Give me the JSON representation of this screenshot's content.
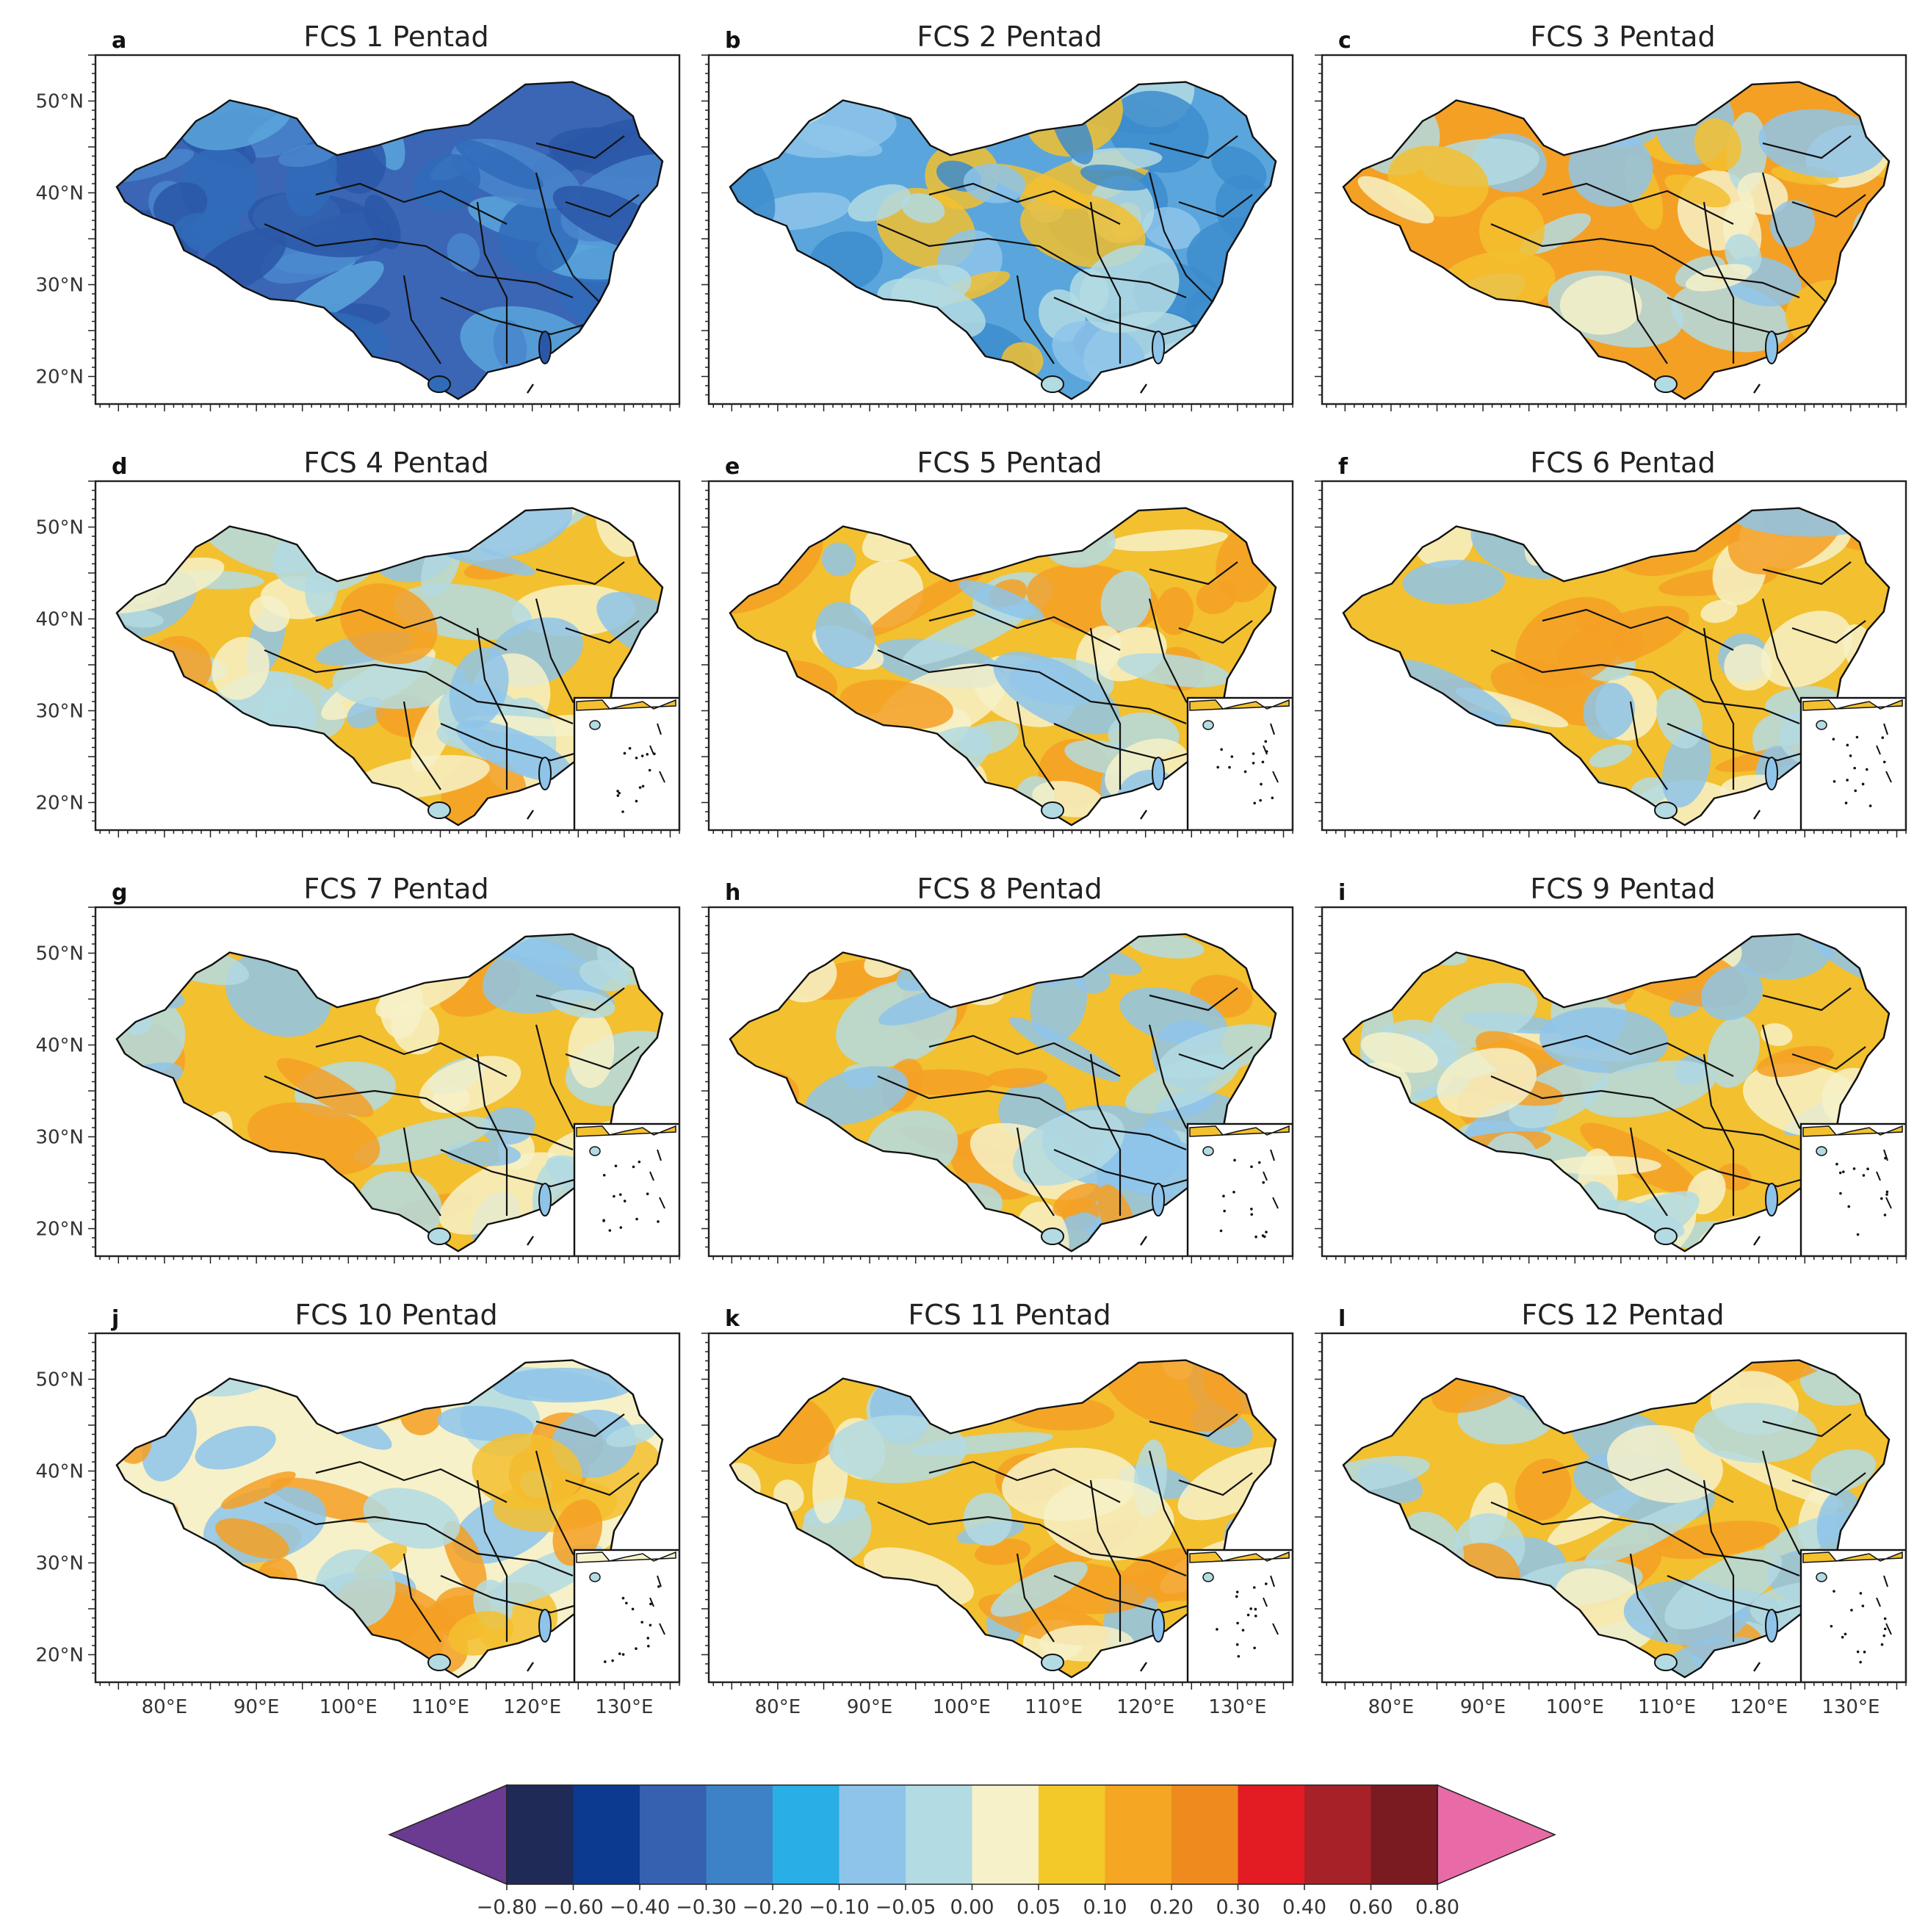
{
  "panels": [
    {
      "letter": "a",
      "title": "FCS 1 Pentad",
      "palette": [
        "#3a66b5",
        "#2b57a8",
        "#4a86cc",
        "#2f6bb8",
        "#5aa6dc"
      ],
      "inset": false
    },
    {
      "letter": "b",
      "title": "FCS 2 Pentad",
      "palette": [
        "#5aa6dc",
        "#8ec4ea",
        "#f3c02f",
        "#b3dbe3",
        "#3d8ccc"
      ],
      "inset": false
    },
    {
      "letter": "c",
      "title": "FCS 3 Pentad",
      "palette": [
        "#f4a025",
        "#8ec4ea",
        "#f6f1c8",
        "#b3dbe3",
        "#f3c02f"
      ],
      "inset": false
    },
    {
      "letter": "d",
      "title": "FCS 4 Pentad",
      "palette": [
        "#f3c02f",
        "#8ec4ea",
        "#f6f1c8",
        "#b3dbe3",
        "#f4a025"
      ],
      "inset": true
    },
    {
      "letter": "e",
      "title": "FCS 5 Pentad",
      "palette": [
        "#f3c02f",
        "#8ec4ea",
        "#f6f1c8",
        "#b3dbe3",
        "#f4a025"
      ],
      "inset": true
    },
    {
      "letter": "f",
      "title": "FCS 6 Pentad",
      "palette": [
        "#f3c02f",
        "#8ec4ea",
        "#f6f1c8",
        "#b3dbe3",
        "#f4a025"
      ],
      "inset": true
    },
    {
      "letter": "g",
      "title": "FCS 7 Pentad",
      "palette": [
        "#f3c02f",
        "#8ec4ea",
        "#f6f1c8",
        "#b3dbe3",
        "#f4a025"
      ],
      "inset": true
    },
    {
      "letter": "h",
      "title": "FCS 8 Pentad",
      "palette": [
        "#f3c02f",
        "#8ec4ea",
        "#f6f1c8",
        "#b3dbe3",
        "#f4a025"
      ],
      "inset": true
    },
    {
      "letter": "i",
      "title": "FCS 9 Pentad",
      "palette": [
        "#f3c02f",
        "#8ec4ea",
        "#f6f1c8",
        "#b3dbe3",
        "#f4a025"
      ],
      "inset": true
    },
    {
      "letter": "j",
      "title": "FCS 10 Pentad",
      "palette": [
        "#f6f1c8",
        "#8ec4ea",
        "#f3c02f",
        "#b3dbe3",
        "#f4a025"
      ],
      "inset": true
    },
    {
      "letter": "k",
      "title": "FCS 11 Pentad",
      "palette": [
        "#f3c02f",
        "#8ec4ea",
        "#f6f1c8",
        "#b3dbe3",
        "#f4a025"
      ],
      "inset": true
    },
    {
      "letter": "l",
      "title": "FCS 12 Pentad",
      "palette": [
        "#f3c02f",
        "#8ec4ea",
        "#f6f1c8",
        "#b3dbe3",
        "#f4a025"
      ],
      "inset": true
    }
  ],
  "lat_labels": [
    "50°N",
    "40°N",
    "30°N",
    "20°N"
  ],
  "lat_values": [
    50,
    40,
    30,
    20
  ],
  "lon_labels": [
    "80°E",
    "90°E",
    "100°E",
    "110°E",
    "120°E",
    "130°E"
  ],
  "lon_values": [
    80,
    90,
    100,
    110,
    120,
    130
  ],
  "extent": {
    "lon_min": 72.5,
    "lon_max": 136,
    "lat_min": 17,
    "lat_max": 55
  },
  "colorbar": {
    "ticks": [
      "−0.80",
      "−0.60",
      "−0.40",
      "−0.30",
      "−0.20",
      "−0.10",
      "−0.05",
      "0.00",
      "0.05",
      "0.10",
      "0.20",
      "0.30",
      "0.40",
      "0.60",
      "0.80"
    ],
    "colors": [
      "#6b3a91",
      "#1f2a57",
      "#0b3a90",
      "#3561b0",
      "#3d82c6",
      "#2aaee6",
      "#8ec4ea",
      "#b3dbe3",
      "#f6f1c8",
      "#f3c92a",
      "#f5a623",
      "#ef8a1f",
      "#e31b23",
      "#a72128",
      "#7a1a21",
      "#e86aa6"
    ]
  }
}
